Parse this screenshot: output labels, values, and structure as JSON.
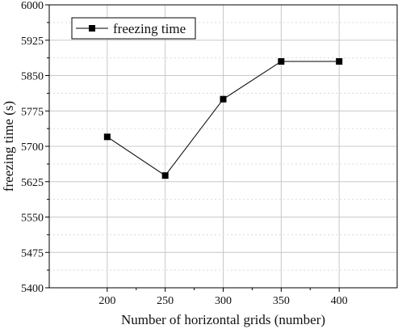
{
  "chart_data": {
    "type": "line",
    "x": [
      200,
      250,
      300,
      350,
      400
    ],
    "series": [
      {
        "name": "freezing time",
        "values": [
          5720,
          5638,
          5800,
          5880,
          5880
        ],
        "color": "#000000",
        "marker": "square"
      }
    ],
    "xlabel": "Number of horizontal grids (number)",
    "ylabel": "freezing time (s)",
    "xticks": [
      200,
      250,
      300,
      350,
      400
    ],
    "yticks": [
      5400,
      5475,
      5550,
      5625,
      5700,
      5775,
      5850,
      5925,
      6000
    ],
    "xlim": [
      150,
      450
    ],
    "ylim": [
      5400,
      6000
    ],
    "grid": true,
    "legend_position": "top-left"
  }
}
